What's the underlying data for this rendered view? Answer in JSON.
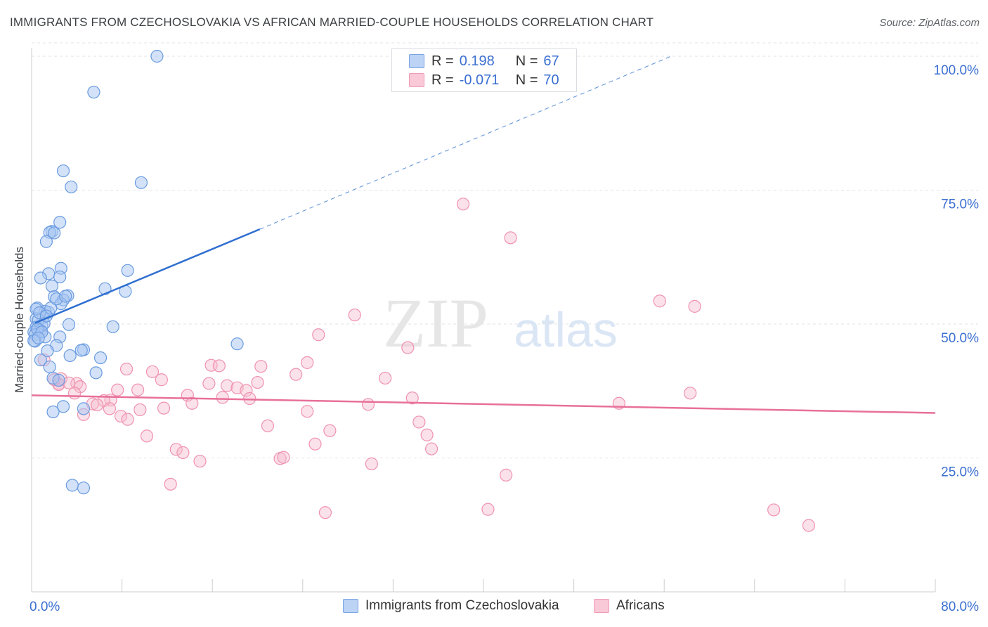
{
  "title": "IMMIGRANTS FROM CZECHOSLOVAKIA VS AFRICAN MARRIED-COUPLE HOUSEHOLDS CORRELATION CHART",
  "source": "Source: ZipAtlas.com",
  "watermark": {
    "zip": "ZIP",
    "atlas": "atlas"
  },
  "legend": {
    "r_label": "R =",
    "n_label": "N =",
    "series1": {
      "r": "0.198",
      "n": "67"
    },
    "series2": {
      "r": "-0.071",
      "n": "70"
    }
  },
  "chart_data": {
    "type": "scatter",
    "title": "IMMIGRANTS FROM CZECHOSLOVAKIA VS AFRICAN MARRIED-COUPLE HOUSEHOLDS CORRELATION CHART",
    "xlabel": "",
    "ylabel": "Married-couple Households",
    "xlim": [
      0,
      80
    ],
    "ylim": [
      0,
      102
    ],
    "x_tick_labels": [
      "0.0%",
      "80.0%"
    ],
    "y_ticks": [
      25,
      50,
      75,
      100
    ],
    "y_tick_labels": [
      "25.0%",
      "50.0%",
      "75.0%",
      "100.0%"
    ],
    "colors": {
      "series1_fill": "#a8c6f2",
      "series1_stroke": "#6a9be0",
      "series1_line": "#2f6fd0",
      "series2_fill": "#f7bccf",
      "series2_stroke": "#ef92b0",
      "series2_line": "#e8709a",
      "grid": "#e3e3e3",
      "axis": "#cccccc"
    },
    "series": [
      {
        "name": "Immigrants from Czechoslovakia",
        "r": 0.198,
        "n": 67,
        "trend": {
          "x0": 0.3,
          "y0": 50.2,
          "x1": 20.2,
          "y1": 67.7,
          "dash_to_x": 56.5,
          "dash_to_y": 99.9
        },
        "points": [
          [
            11.1,
            100.0
          ],
          [
            5.5,
            93.3
          ],
          [
            2.8,
            78.6
          ],
          [
            3.5,
            75.6
          ],
          [
            9.7,
            76.4
          ],
          [
            2.5,
            69.0
          ],
          [
            1.8,
            67.3
          ],
          [
            1.6,
            67.1
          ],
          [
            2.0,
            67.0
          ],
          [
            1.3,
            65.4
          ],
          [
            8.5,
            60.0
          ],
          [
            2.6,
            60.4
          ],
          [
            1.5,
            59.4
          ],
          [
            2.5,
            58.8
          ],
          [
            0.8,
            58.6
          ],
          [
            1.8,
            57.1
          ],
          [
            6.5,
            56.6
          ],
          [
            8.3,
            56.1
          ],
          [
            2.0,
            55.1
          ],
          [
            3.2,
            55.3
          ],
          [
            2.8,
            54.5
          ],
          [
            2.6,
            53.8
          ],
          [
            0.5,
            53.0
          ],
          [
            1.5,
            52.2
          ],
          [
            1.2,
            52.4
          ],
          [
            1.0,
            51.2
          ],
          [
            0.4,
            51.0
          ],
          [
            0.6,
            50.8
          ],
          [
            3.3,
            49.9
          ],
          [
            7.2,
            49.5
          ],
          [
            0.9,
            49.7
          ],
          [
            0.4,
            49.4
          ],
          [
            0.6,
            49.0
          ],
          [
            0.8,
            48.8
          ],
          [
            0.2,
            48.5
          ],
          [
            0.3,
            48.0
          ],
          [
            2.5,
            47.6
          ],
          [
            1.2,
            47.6
          ],
          [
            0.3,
            46.8
          ],
          [
            18.2,
            46.3
          ],
          [
            2.2,
            46.0
          ],
          [
            1.4,
            45.0
          ],
          [
            4.6,
            45.2
          ],
          [
            4.4,
            45.1
          ],
          [
            3.4,
            44.1
          ],
          [
            6.1,
            43.7
          ],
          [
            0.8,
            43.3
          ],
          [
            1.6,
            42.0
          ],
          [
            5.7,
            40.9
          ],
          [
            1.9,
            39.9
          ],
          [
            2.4,
            39.5
          ],
          [
            2.8,
            34.6
          ],
          [
            4.6,
            34.2
          ],
          [
            1.9,
            33.6
          ],
          [
            3.6,
            19.9
          ],
          [
            4.6,
            19.4
          ],
          [
            0.4,
            52.8
          ],
          [
            0.7,
            52.1
          ],
          [
            1.1,
            50.1
          ],
          [
            0.5,
            49.1
          ],
          [
            1.7,
            53.0
          ],
          [
            0.9,
            48.5
          ],
          [
            0.2,
            46.9
          ],
          [
            2.2,
            54.7
          ],
          [
            1.3,
            51.5
          ],
          [
            0.6,
            47.4
          ],
          [
            3.0,
            55.2
          ]
        ]
      },
      {
        "name": "Africans",
        "r": -0.071,
        "n": 70,
        "trend": {
          "x0": 0,
          "y0": 36.7,
          "x1": 80,
          "y1": 33.4
        },
        "points": [
          [
            38.2,
            72.4
          ],
          [
            42.4,
            66.1
          ],
          [
            55.6,
            54.3
          ],
          [
            58.7,
            53.3
          ],
          [
            28.6,
            51.7
          ],
          [
            25.4,
            48.0
          ],
          [
            33.3,
            45.6
          ],
          [
            8.4,
            41.6
          ],
          [
            10.7,
            41.1
          ],
          [
            11.5,
            39.6
          ],
          [
            7.6,
            37.7
          ],
          [
            9.4,
            37.7
          ],
          [
            15.9,
            42.3
          ],
          [
            16.6,
            42.2
          ],
          [
            20.3,
            42.1
          ],
          [
            23.4,
            40.6
          ],
          [
            24.4,
            42.8
          ],
          [
            31.3,
            39.9
          ],
          [
            17.3,
            38.5
          ],
          [
            18.2,
            38.1
          ],
          [
            19.0,
            37.6
          ],
          [
            20.0,
            39.1
          ],
          [
            15.7,
            38.9
          ],
          [
            13.8,
            36.7
          ],
          [
            7.0,
            35.8
          ],
          [
            6.4,
            35.7
          ],
          [
            5.4,
            35.1
          ],
          [
            9.6,
            34.0
          ],
          [
            11.7,
            34.3
          ],
          [
            14.2,
            35.2
          ],
          [
            16.9,
            36.3
          ],
          [
            19.3,
            36.1
          ],
          [
            29.8,
            35.0
          ],
          [
            33.7,
            36.2
          ],
          [
            52.0,
            35.2
          ],
          [
            58.3,
            37.1
          ],
          [
            6.9,
            34.2
          ],
          [
            7.9,
            32.8
          ],
          [
            24.4,
            33.7
          ],
          [
            4.0,
            38.9
          ],
          [
            2.4,
            38.8
          ],
          [
            2.4,
            38.7
          ],
          [
            2.6,
            39.8
          ],
          [
            3.3,
            39.0
          ],
          [
            4.3,
            38.3
          ],
          [
            4.6,
            33.1
          ],
          [
            3.8,
            37.1
          ],
          [
            5.8,
            34.9
          ],
          [
            20.9,
            31.0
          ],
          [
            26.4,
            30.1
          ],
          [
            34.3,
            31.7
          ],
          [
            35.0,
            29.3
          ],
          [
            8.5,
            32.2
          ],
          [
            10.2,
            29.1
          ],
          [
            12.8,
            26.6
          ],
          [
            13.4,
            26.0
          ],
          [
            14.9,
            24.4
          ],
          [
            22.0,
            24.9
          ],
          [
            22.3,
            25.1
          ],
          [
            30.1,
            23.9
          ],
          [
            25.1,
            27.6
          ],
          [
            35.4,
            26.7
          ],
          [
            12.3,
            20.1
          ],
          [
            42.0,
            21.8
          ],
          [
            26.0,
            14.8
          ],
          [
            40.4,
            15.4
          ],
          [
            65.7,
            15.3
          ],
          [
            68.8,
            12.4
          ],
          [
            2.0,
            39.6
          ],
          [
            1.1,
            43.3
          ]
        ]
      }
    ]
  },
  "bottom_legend": {
    "series1": "Immigrants from Czechoslovakia",
    "series2": "Africans"
  }
}
